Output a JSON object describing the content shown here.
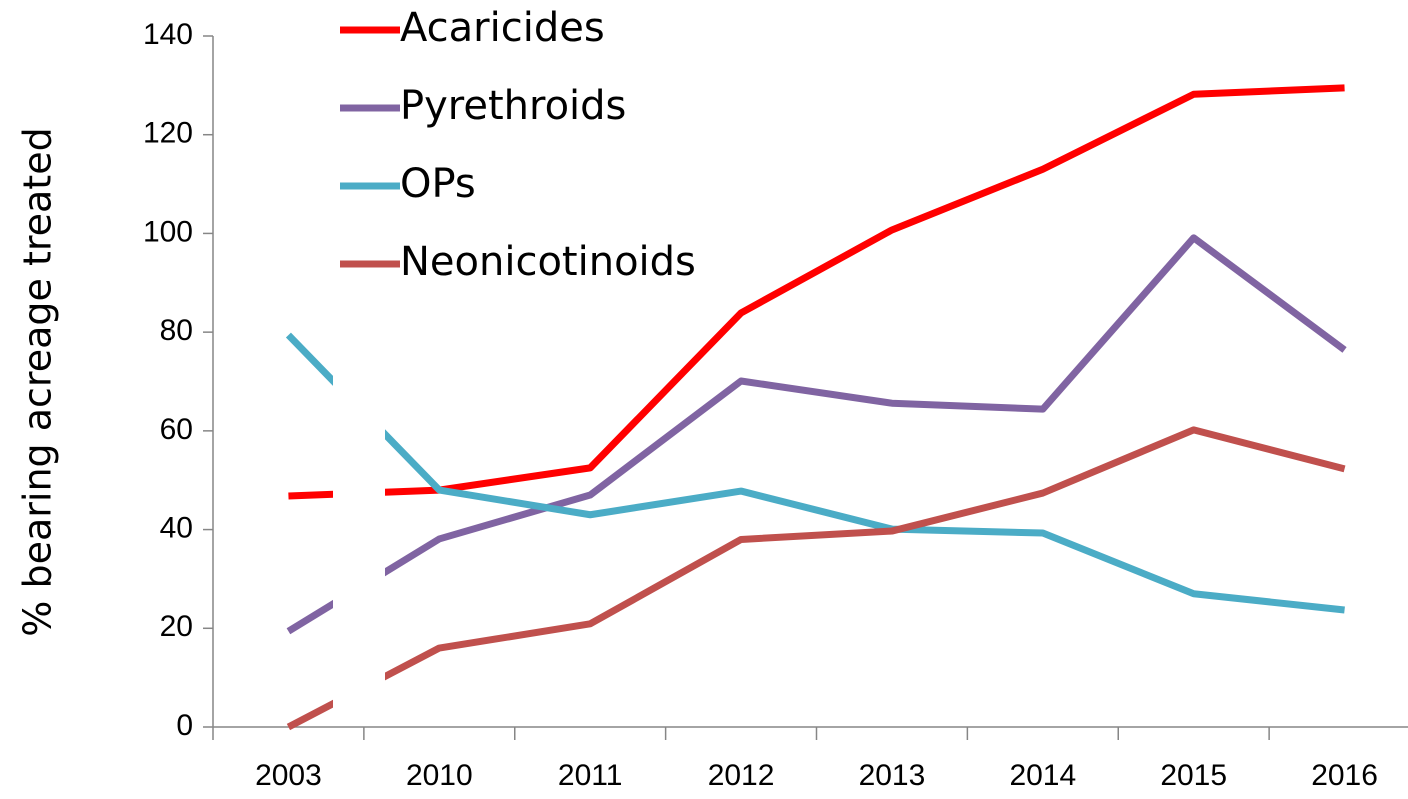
{
  "chart_data": {
    "type": "line",
    "y_label": "% bearing acreage treated",
    "categories": [
      "2003",
      "2010",
      "2011",
      "2012",
      "2013",
      "2014",
      "2015",
      "2016"
    ],
    "series": [
      {
        "name": "Acaricides",
        "color": "#ff0000",
        "values": [
          46.8,
          48,
          52.5,
          83.9,
          100.7,
          113,
          128.2,
          129.5
        ]
      },
      {
        "name": "Pyrethroids",
        "color": "#8064a2",
        "values": [
          19.4,
          38.1,
          47,
          70.1,
          65.6,
          64.4,
          99.1,
          76.4
        ]
      },
      {
        "name": "OPs",
        "color": "#4bacc6",
        "values": [
          79.4,
          48,
          43,
          47.8,
          40.1,
          39.3,
          27,
          23.7
        ]
      },
      {
        "name": "Neonicotinoids",
        "color": "#c0504d",
        "values": [
          0,
          16,
          20.9,
          38,
          39.7,
          47.4,
          60.2,
          52.3
        ]
      }
    ],
    "ylim": [
      0,
      140
    ],
    "yticks": [
      0,
      20,
      40,
      60,
      80,
      100,
      120,
      140
    ],
    "legend": "top-left"
  }
}
